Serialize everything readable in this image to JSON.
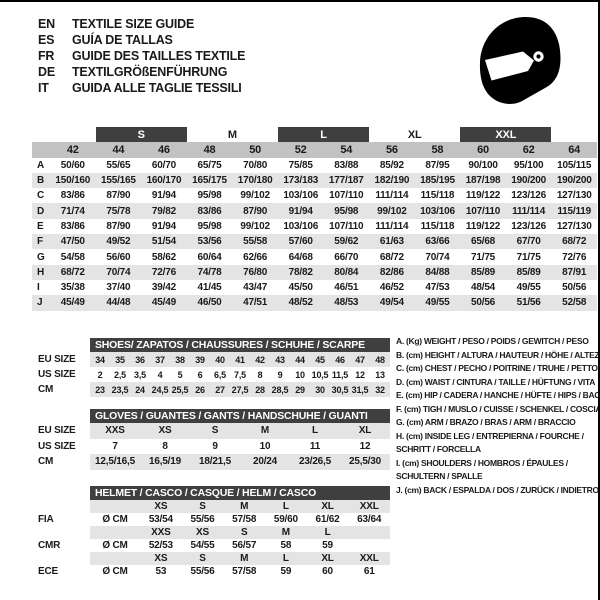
{
  "colors": {
    "bar_dark": "#3f3f3f",
    "band_silver": "#c2c2c2",
    "row_stripe": "#e4e4e4",
    "ink": "#1a1a1a",
    "helmet": "#000000"
  },
  "header": {
    "languages": [
      {
        "code": "EN",
        "text": "TEXTILE SIZE GUIDE"
      },
      {
        "code": "ES",
        "text": "GUÍA DE TALLAS"
      },
      {
        "code": "FR",
        "text": "GUIDE DES TAILLES TEXTILE"
      },
      {
        "code": "DE",
        "text": "TEXTILGRÖßENFÜHRUNG"
      },
      {
        "code": "IT",
        "text": "GUIDA ALLE TAGLIE TESSILI"
      }
    ],
    "helmet_icon": "full-face-racing-helmet"
  },
  "main_table": {
    "groups": [
      {
        "label": "",
        "span": 1,
        "dark": false
      },
      {
        "label": "",
        "span": 1,
        "dark": false
      },
      {
        "label": "S",
        "span": 2,
        "dark": true
      },
      {
        "label": "M",
        "span": 2,
        "dark": false
      },
      {
        "label": "L",
        "span": 2,
        "dark": true
      },
      {
        "label": "XL",
        "span": 2,
        "dark": false
      },
      {
        "label": "XXL",
        "span": 2,
        "dark": true
      },
      {
        "label": "",
        "span": 1,
        "dark": false
      }
    ],
    "columns": [
      "42",
      "44",
      "46",
      "48",
      "50",
      "52",
      "54",
      "56",
      "58",
      "60",
      "62",
      "64"
    ],
    "rows": [
      {
        "label": "A",
        "values": [
          "50/60",
          "55/65",
          "60/70",
          "65/75",
          "70/80",
          "75/85",
          "83/88",
          "85/92",
          "87/95",
          "90/100",
          "95/100",
          "105/115"
        ]
      },
      {
        "label": "B",
        "values": [
          "150/160",
          "155/165",
          "160/170",
          "165/175",
          "170/180",
          "173/183",
          "177/187",
          "182/190",
          "185/195",
          "187/198",
          "190/200",
          "190/200"
        ]
      },
      {
        "label": "C",
        "values": [
          "83/86",
          "87/90",
          "91/94",
          "95/98",
          "99/102",
          "103/106",
          "107/110",
          "111/114",
          "115/118",
          "119/122",
          "123/126",
          "127/130"
        ]
      },
      {
        "label": "D",
        "values": [
          "71/74",
          "75/78",
          "79/82",
          "83/86",
          "87/90",
          "91/94",
          "95/98",
          "99/102",
          "103/106",
          "107/110",
          "111/114",
          "115/119"
        ]
      },
      {
        "label": "E",
        "values": [
          "83/86",
          "87/90",
          "91/94",
          "95/98",
          "99/102",
          "103/106",
          "107/110",
          "111/114",
          "115/118",
          "119/122",
          "123/126",
          "127/130"
        ]
      },
      {
        "label": "F",
        "values": [
          "47/50",
          "49/52",
          "51/54",
          "53/56",
          "55/58",
          "57/60",
          "59/62",
          "61/63",
          "63/66",
          "65/68",
          "67/70",
          "68/72"
        ]
      },
      {
        "label": "G",
        "values": [
          "54/58",
          "56/60",
          "58/62",
          "60/64",
          "62/66",
          "64/68",
          "66/70",
          "68/72",
          "70/74",
          "71/75",
          "71/75",
          "72/76"
        ]
      },
      {
        "label": "H",
        "values": [
          "68/72",
          "70/74",
          "72/76",
          "74/78",
          "76/80",
          "78/82",
          "80/84",
          "82/86",
          "84/88",
          "85/89",
          "85/89",
          "87/91"
        ]
      },
      {
        "label": "I",
        "values": [
          "35/38",
          "37/40",
          "39/42",
          "41/45",
          "43/47",
          "45/50",
          "46/51",
          "46/52",
          "47/53",
          "48/54",
          "49/55",
          "50/56"
        ]
      },
      {
        "label": "J",
        "values": [
          "45/49",
          "44/48",
          "45/49",
          "46/50",
          "47/51",
          "48/52",
          "48/53",
          "49/54",
          "49/55",
          "50/56",
          "51/56",
          "52/58"
        ]
      }
    ]
  },
  "shoes": {
    "title": "SHOES/ ZAPATOS / CHAUSSURES / SCHUHE / SCARPE",
    "rows": [
      {
        "label": "EU SIZE",
        "gray": true,
        "cells": [
          "34",
          "35",
          "36",
          "37",
          "38",
          "39",
          "40",
          "41",
          "42",
          "43",
          "44",
          "45",
          "46",
          "47",
          "48"
        ]
      },
      {
        "label": "US SIZE",
        "gray": false,
        "cells": [
          "2",
          "2,5",
          "3,5",
          "4",
          "5",
          "6",
          "6,5",
          "7,5",
          "8",
          "9",
          "10",
          "10,5",
          "11,5",
          "12",
          "13"
        ]
      },
      {
        "label": "CM",
        "gray": true,
        "cells": [
          "23",
          "23,5",
          "24",
          "24,5",
          "25,5",
          "26",
          "27",
          "27,5",
          "28",
          "28,5",
          "29",
          "30",
          "30,5",
          "31,5",
          "32"
        ]
      }
    ]
  },
  "gloves": {
    "title": "GLOVES / GUANTES / GANTS / HANDSCHUHE / GUANTI",
    "rows": [
      {
        "label": "EU SIZE",
        "gray": true,
        "cells": [
          "XXS",
          "XS",
          "S",
          "M",
          "L",
          "XL"
        ]
      },
      {
        "label": "US SIZE",
        "gray": false,
        "cells": [
          "7",
          "8",
          "9",
          "10",
          "11",
          "12"
        ]
      },
      {
        "label": "CM",
        "gray": true,
        "cells": [
          "12,5/16,5",
          "16,5/19",
          "18/21,5",
          "20/24",
          "23/26,5",
          "25,5/30"
        ]
      }
    ]
  },
  "helmet": {
    "title": "HELMET / CASCO / CASQUE / HELM / CASCO",
    "rows": [
      {
        "label": "",
        "gray": true,
        "cells": [
          "",
          "XS",
          "S",
          "M",
          "L",
          "XL",
          "XXL"
        ]
      },
      {
        "label": "FIA",
        "gray": false,
        "cells": [
          "Ø CM",
          "53/54",
          "55/56",
          "57/58",
          "59/60",
          "61/62",
          "63/64"
        ]
      },
      {
        "label": "",
        "gray": true,
        "cells": [
          "",
          "XXS",
          "XS",
          "S",
          "M",
          "L",
          ""
        ]
      },
      {
        "label": "CMR",
        "gray": false,
        "cells": [
          "Ø CM",
          "52/53",
          "54/55",
          "56/57",
          "58",
          "59",
          ""
        ]
      },
      {
        "label": "",
        "gray": true,
        "cells": [
          "",
          "XS",
          "S",
          "M",
          "L",
          "XL",
          "XXL"
        ]
      },
      {
        "label": "ECE",
        "gray": false,
        "cells": [
          "Ø CM",
          "53",
          "55/56",
          "57/58",
          "59",
          "60",
          "61"
        ]
      }
    ]
  },
  "legend": {
    "items": [
      {
        "lines": [
          "A. (Kg) WEIGHT / PESO / POIDS / GEWITCH / PESO"
        ]
      },
      {
        "lines": [
          "B. (cm) HEIGHT / ALTURA / HAUTEUR / HÖHE / ALTEZZA"
        ]
      },
      {
        "lines": [
          "C. (cm) CHEST / PECHO / POITRINE / TRUHE / PETTO"
        ]
      },
      {
        "lines": [
          "D. (cm) WAIST / CINTURA / TAILLE / HÜFTUNG / VITA"
        ]
      },
      {
        "lines": [
          "E. (cm) HIP / CADERA / HANCHE / HÜFTE / HIPS /  BACINO"
        ]
      },
      {
        "lines": [
          "F.  (cm) TIGH / MUSLO / CUISSE / SCHENKEL / COSCIA"
        ]
      },
      {
        "lines": [
          "G. (cm) ARM  / BRAZO / BRAS / ARM / BRACCIO"
        ]
      },
      {
        "lines": [
          "H. (cm) INSIDE LEG / ENTREPIERNA / FOURCHE /",
          "SCHRITT / FORCELLA"
        ]
      },
      {
        "lines": [
          "I.  (cm) SHOULDERS / HOMBROS / ÉPAULES /",
          "SCHULTERN / SPALLE"
        ]
      },
      {
        "lines": [
          "J. (cm) BACK / ESPALDA / DOS / ZURÜCK / INDIETRO"
        ]
      }
    ]
  }
}
